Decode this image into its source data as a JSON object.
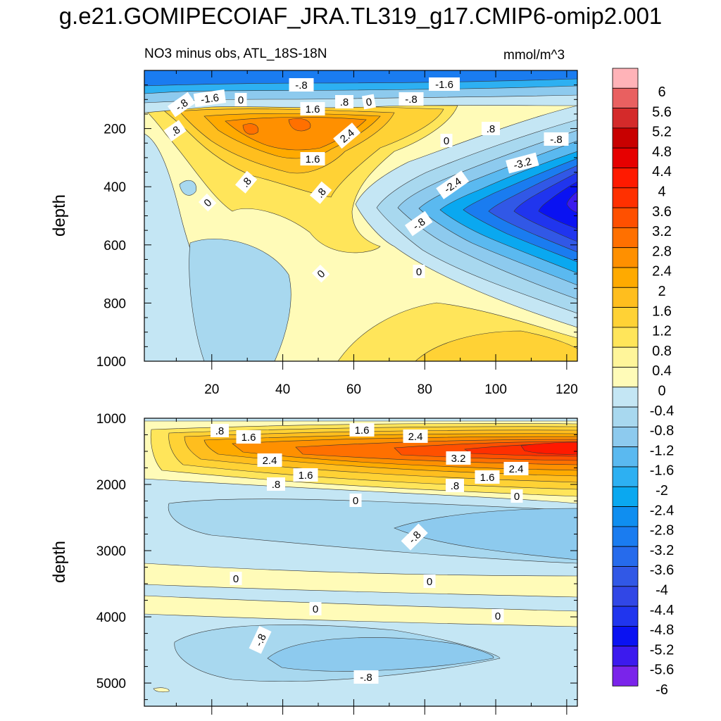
{
  "title": "g.e21.GOMIPECOIAF_JRA.TL319_g17.CMIP6-omip2.001",
  "subtitle": "NO3 minus obs, ATL_18S-18N",
  "units": "mmol/m^3",
  "chart_data": [
    {
      "type": "contour",
      "panel": "upper",
      "ylabel": "depth",
      "xlabel": "",
      "xlim": [
        1,
        123
      ],
      "ylim": [
        1000,
        0
      ],
      "xticks": [
        "20",
        "40",
        "60",
        "80",
        "100",
        "120"
      ],
      "yticks": [
        "200",
        "400",
        "600",
        "800",
        "1000"
      ],
      "contour_labels": [
        "-.8",
        "-1.6",
        "0",
        "-.8",
        "-1.6",
        "1.6",
        ".8",
        "0",
        "-.8",
        ".8",
        "2.4",
        ".8",
        "0",
        "-.8",
        "1.6",
        "-3.2",
        ".8",
        "-2.4",
        "0",
        ".8",
        "-.8",
        "0",
        "0"
      ],
      "features": [
        {
          "region": "near surface (0-100 m), all longitudes",
          "value_range": [
            -1.6,
            -0.8
          ]
        },
        {
          "region": "subsurface max, x 30-75, depth 150-250",
          "value_range": [
            2.0,
            2.8
          ]
        },
        {
          "region": "eastern minimum, x 100-123, depth 350-500",
          "value_range": [
            -5.6,
            -4.8
          ]
        },
        {
          "region": "western interior, x 15-50, depth 550-900",
          "value_range": [
            -0.8,
            -0.4
          ]
        }
      ]
    },
    {
      "type": "contour",
      "panel": "lower",
      "ylabel": "depth",
      "xlabel": "",
      "xlim": [
        1,
        123
      ],
      "ylim": [
        5350,
        1000
      ],
      "yticks": [
        "1000",
        "2000",
        "3000",
        "4000",
        "5000"
      ],
      "contour_labels": [
        ".8",
        "1.6",
        "1.6",
        "2.4",
        "2.4",
        "1.6",
        "3.2",
        "1.6",
        "2.4",
        ".8",
        ".8",
        "0",
        "0",
        "-.8",
        "0",
        "0",
        "0",
        "0",
        "-.8",
        "-.8"
      ],
      "features": [
        {
          "region": "x 80-123, depth 1300-1600",
          "value_range": [
            3.2,
            3.6
          ]
        },
        {
          "region": "x 70-123, depth 2600-3100",
          "value_range": [
            -0.8,
            -1.2
          ]
        },
        {
          "region": "x 35-100, depth 4300-4900",
          "value_range": [
            -0.8,
            -1.2
          ]
        }
      ]
    }
  ],
  "colorbar": {
    "levels": [
      "6",
      "5.6",
      "5.2",
      "4.8",
      "4.4",
      "4",
      "3.6",
      "3.2",
      "2.8",
      "2.4",
      "2",
      "1.6",
      "1.2",
      "0.8",
      "0.4",
      "0",
      "-0.4",
      "-0.8",
      "-1.2",
      "-1.6",
      "-2",
      "-2.4",
      "-2.8",
      "-3.2",
      "-3.6",
      "-4",
      "-4.4",
      "-4.8",
      "-5.2",
      "-5.6",
      "-6"
    ],
    "colors": [
      "#ffb3b8",
      "#e96060",
      "#d42a2a",
      "#c80000",
      "#e60000",
      "#ff1a00",
      "#ff3000",
      "#ff5000",
      "#ff7000",
      "#ff9000",
      "#ffaa00",
      "#ffbe1e",
      "#ffd235",
      "#ffe55a",
      "#fff59a",
      "#fffbb8",
      "#c4e6f4",
      "#a8d8ef",
      "#8dcaee",
      "#5ab9f0",
      "#2db0f2",
      "#0aa8f0",
      "#0f8ef0",
      "#1a7cf0",
      "#266bec",
      "#3158e6",
      "#3147e6",
      "#2035ee",
      "#0a12f2",
      "#3c1aee",
      "#7a24ea"
    ]
  }
}
